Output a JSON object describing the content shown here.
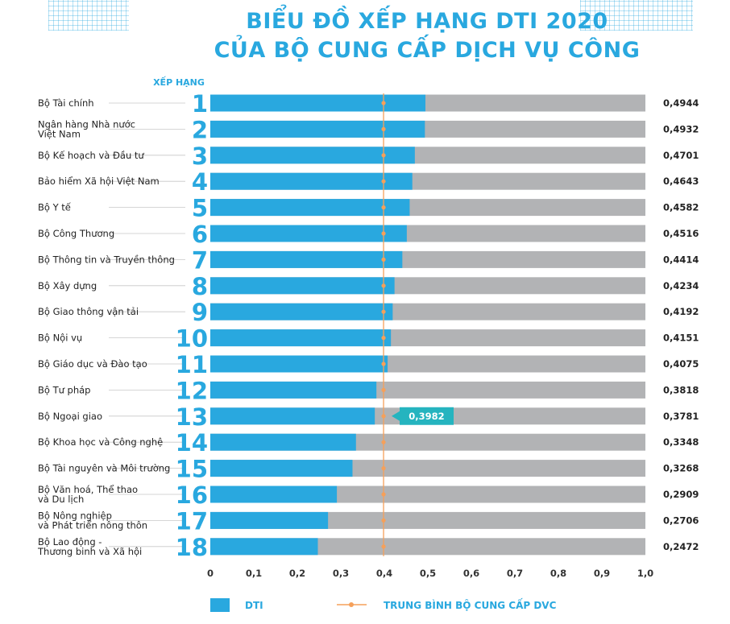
{
  "chart_data": {
    "type": "bar",
    "title": "BIỂU ĐỒ XẾP HẠNG DTI 2020",
    "subtitle": "CỦA BỘ CUNG CẤP DỊCH VỤ CÔNG",
    "rank_header": "XẾP HẠNG",
    "categories": [
      "Bộ Tài chính",
      "Ngân hàng Nhà nước\nViệt Nam",
      "Bộ Kế hoạch và Đầu tư",
      "Bảo hiểm Xã hội Việt Nam",
      "Bộ Y tế",
      "Bộ Công Thương",
      "Bộ Thông tin và Truyền thông",
      "Bộ Xây dựng",
      "Bộ Giao thông vận tải",
      "Bộ Nội vụ",
      "Bộ Giáo dục và Đào tạo",
      "Bộ Tư pháp",
      "Bộ Ngoại giao",
      "Bộ Khoa học và Công nghệ",
      "Bộ Tài nguyên và Môi trường",
      "Bộ Văn hoá, Thể thao\nvà Du lịch",
      "Bộ Nông nghiệp\nvà Phát triển nông thôn",
      "Bộ Lao động -\nThương binh và Xã hội"
    ],
    "ranks": [
      "1",
      "2",
      "3",
      "4",
      "5",
      "6",
      "7",
      "8",
      "9",
      "10",
      "11",
      "12",
      "13",
      "14",
      "15",
      "16",
      "17",
      "18"
    ],
    "series": [
      {
        "name": "DTI",
        "values": [
          0.4944,
          0.4932,
          0.4701,
          0.4643,
          0.4582,
          0.4516,
          0.4414,
          0.4234,
          0.4192,
          0.4151,
          0.4075,
          0.3818,
          0.3781,
          0.3348,
          0.3268,
          0.2909,
          0.2706,
          0.2472
        ],
        "labels": [
          "0,4944",
          "0,4932",
          "0,4701",
          "0,4643",
          "0,4582",
          "0,4516",
          "0,4414",
          "0,4234",
          "0,4192",
          "0,4151",
          "0,4075",
          "0,3818",
          "0,3781",
          "0,3348",
          "0,3268",
          "0,2909",
          "0,2706",
          "0,2472"
        ]
      }
    ],
    "average": {
      "name": "TRUNG BÌNH BỘ CUNG CẤP DVC",
      "value": 0.3982,
      "label": "0,3982"
    },
    "xlim": [
      0,
      1.0
    ],
    "xticks": [
      "0",
      "0,1",
      "0,2",
      "0,3",
      "0,4",
      "0,5",
      "0,6",
      "0,7",
      "0,8",
      "0,9",
      "1,0"
    ],
    "colors": {
      "bar": "#29a8df",
      "track": "#b2b3b5",
      "average": "#f5a05a",
      "title": "#29a8df",
      "callout": "#25b4bf"
    },
    "legend_position": "bottom",
    "grid": false
  }
}
